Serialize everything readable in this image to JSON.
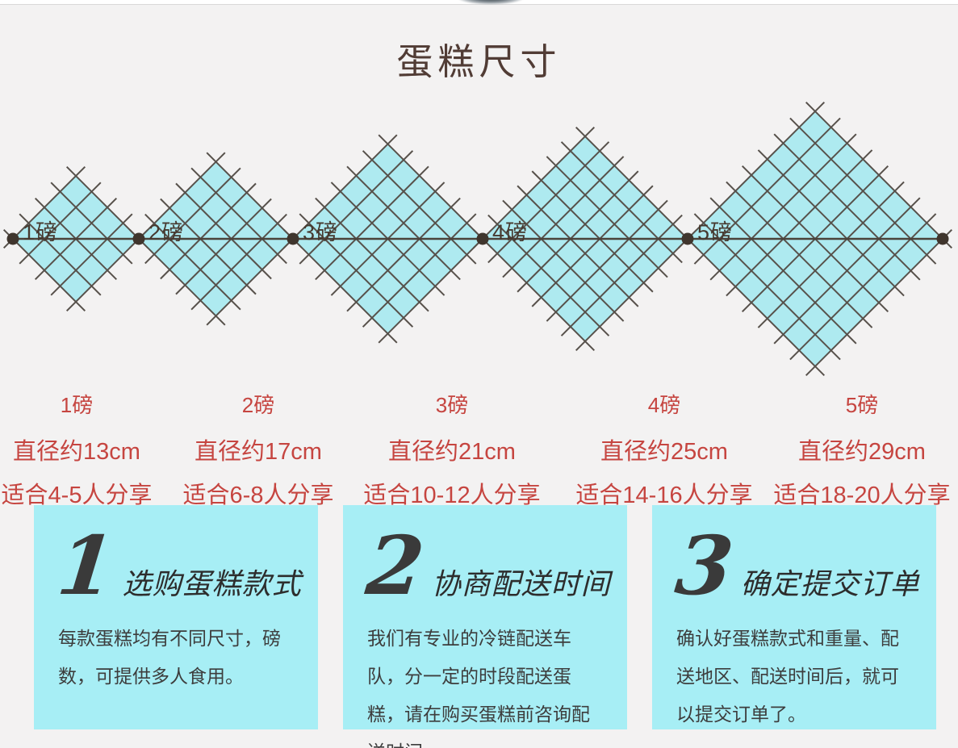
{
  "title": "蛋糕尺寸",
  "colors": {
    "page_bg": "#f3f2f2",
    "diamond_fill": "#aeeaf0",
    "hatch_line": "#57514b",
    "axis_line": "#4a423b",
    "axis_dot": "#3f352d",
    "red_text": "#c64540",
    "title_text": "#513c35",
    "step_box_bg": "#a7eef5",
    "step_text": "#3a3a3a"
  },
  "size_chart": {
    "items": [
      {
        "pound": "1磅",
        "diameter": "直径约13cm",
        "serves": "适合4-5人分享"
      },
      {
        "pound": "2磅",
        "diameter": "直径约17cm",
        "serves": "适合6-8人分享"
      },
      {
        "pound": "3磅",
        "diameter": "直径约21cm",
        "serves": "适合10-12人分享"
      },
      {
        "pound": "4磅",
        "diameter": "直径约25cm",
        "serves": "适合14-16人分享"
      },
      {
        "pound": "5磅",
        "diameter": "直径约29cm",
        "serves": "适合18-20人分享"
      }
    ]
  },
  "steps": [
    {
      "number": "1",
      "title": "选购蛋糕款式",
      "body": "每款蛋糕均有不同尺寸，磅数，可提供多人食用。"
    },
    {
      "number": "2",
      "title": "协商配送时间",
      "body": "我们有专业的冷链配送车队，分一定的时段配送蛋糕，请在购买蛋糕前咨询配送时间。"
    },
    {
      "number": "3",
      "title": "确定提交订单",
      "body": "确认好蛋糕款式和重量、配送地区、配送时间后，就可以提交订单了。"
    }
  ]
}
